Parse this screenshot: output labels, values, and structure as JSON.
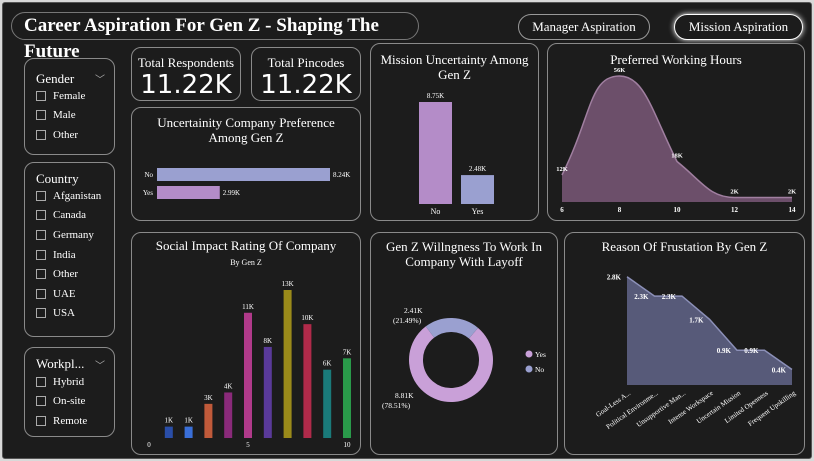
{
  "header": {
    "title": "Career Aspiration For Gen Z - Shaping The Future",
    "nav": [
      "Manager Aspiration",
      "Mission Aspiration"
    ]
  },
  "kpis": [
    {
      "label": "Total Respondents",
      "value": "11.22K"
    },
    {
      "label": "Total Pincodes",
      "value": "11.22K"
    }
  ],
  "slicers": {
    "gender": {
      "title": "Gender",
      "options": [
        "Female",
        "Male",
        "Other"
      ]
    },
    "country": {
      "title": "Country",
      "options": [
        "Afganistan",
        "Canada",
        "Germany",
        "India",
        "Other",
        "UAE",
        "USA"
      ]
    },
    "workplace": {
      "title": "Workpl...",
      "options": [
        "Hybrid",
        "On-site",
        "Remote"
      ]
    }
  },
  "colors": {
    "purple": "#b48cc8",
    "bluegray": "#9aa0d0",
    "area_purple": "#7a5878",
    "frustration_fill": "#5e6284"
  },
  "chart_data": [
    {
      "id": "mission_uncertainty",
      "type": "bar",
      "title": "Mission Uncertainty Among Gen Z",
      "categories": [
        "No",
        "Yes"
      ],
      "values": [
        8.75,
        2.48
      ],
      "labels": [
        "8.75K",
        "2.48K"
      ],
      "colors": [
        "#b48cc8",
        "#9aa0d0"
      ]
    },
    {
      "id": "preferred_hours",
      "type": "area",
      "title": "Preferred Working Hours",
      "x": [
        6,
        8,
        10,
        12,
        14
      ],
      "points": [
        [
          6,
          12
        ],
        [
          8,
          56
        ],
        [
          10,
          18
        ],
        [
          12,
          2
        ],
        [
          14,
          2
        ]
      ],
      "point_labels": [
        "12K",
        "56K",
        "18K",
        "2K",
        "2K"
      ],
      "xticks": [
        "6",
        "8",
        "10",
        "12",
        "14"
      ]
    },
    {
      "id": "uncertainty_company",
      "type": "bar",
      "orientation": "horizontal",
      "title": "Uncertainity Company Preference Among Gen Z",
      "categories": [
        "No",
        "Yes"
      ],
      "values": [
        8.24,
        2.99
      ],
      "labels": [
        "8.24K",
        "2.99K"
      ],
      "colors": [
        "#9aa0d0",
        "#b48cc8"
      ]
    },
    {
      "id": "social_impact",
      "type": "bar",
      "title": "Social Impact Rating Of Company",
      "subtitle": "By Gen Z",
      "categories": [
        1,
        2,
        3,
        4,
        5,
        6,
        7,
        8,
        9,
        10
      ],
      "values": [
        1,
        1,
        3,
        4,
        11,
        8,
        13,
        10,
        6,
        7
      ],
      "labels": [
        "1K",
        "1K",
        "3K",
        "4K",
        "11K",
        "8K",
        "13K",
        "10K",
        "6K",
        "7K"
      ],
      "colors": [
        "#2a4ea8",
        "#3a6fd8",
        "#c05a3a",
        "#8a2a7a",
        "#b03a8a",
        "#5a3a9a",
        "#9a8a1a",
        "#b02a4a",
        "#1a7a7a",
        "#2a9a4a"
      ],
      "xticks": [
        "0",
        "5",
        "10"
      ]
    },
    {
      "id": "layoff",
      "type": "pie",
      "title": "Gen Z Willngness To Work In Company With Layoff",
      "slices": [
        {
          "name": "Yes",
          "value": 8.81,
          "label": "8.81K",
          "pct": "(78.51%)",
          "color": "#c9a0d8"
        },
        {
          "name": "No",
          "value": 2.41,
          "label": "2.41K",
          "pct": "(21.49%)",
          "color": "#9aa0d0"
        }
      ],
      "legend": [
        "Yes",
        "No"
      ]
    },
    {
      "id": "frustration",
      "type": "area",
      "title": "Reason Of Frustation By Gen Z",
      "categories": [
        "Goal-Less A...",
        "Political Environme...",
        "Unsupportive Man...",
        "Intense Workspace",
        "Uncertain Mission",
        "Limited Openness",
        "Frequent Upskilling"
      ],
      "values": [
        2.8,
        2.3,
        2.3,
        1.7,
        0.9,
        0.9,
        0.4
      ],
      "labels": [
        "2.8K",
        "2.3K",
        "2.3K",
        "1.7K",
        "0.9K",
        "0.9K",
        "0.4K"
      ]
    }
  ]
}
